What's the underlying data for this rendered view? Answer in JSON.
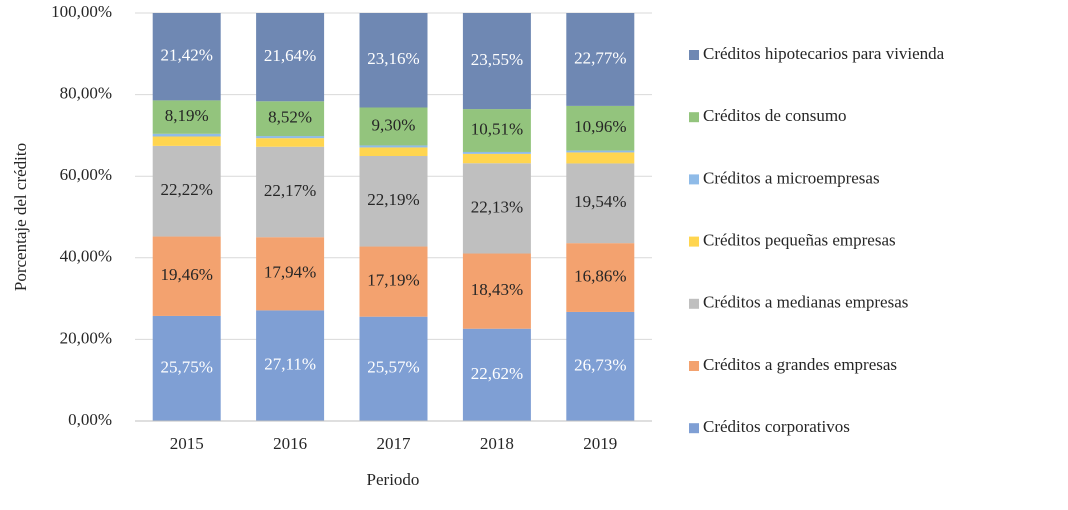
{
  "chart_data": {
    "type": "stacked-bar",
    "x_label": "Periodo",
    "y_label": "Porcentaje del crédito",
    "categories": [
      "2015",
      "2016",
      "2017",
      "2018",
      "2019"
    ],
    "ylim": [
      0,
      100
    ],
    "yticks": [
      {
        "value": 0,
        "label": "0,00%"
      },
      {
        "value": 20,
        "label": "20,00%"
      },
      {
        "value": 40,
        "label": "40,00%"
      },
      {
        "value": 60,
        "label": "60,00%"
      },
      {
        "value": 80,
        "label": "80,00%"
      },
      {
        "value": 100,
        "label": "100,00%"
      }
    ],
    "grid": true,
    "legend": "right",
    "series": [
      {
        "name": "Créditos corporativos",
        "color": "#7f9fd4",
        "label_color": "#ffffff",
        "values": [
          25.75,
          27.11,
          25.57,
          22.62,
          26.73
        ],
        "value_labels": [
          "25,75%",
          "27,11%",
          "25,57%",
          "22,62%",
          "26,73%"
        ]
      },
      {
        "name": "Créditos a grandes empresas",
        "color": "#f3a26f",
        "label_color": "#262626",
        "values": [
          19.46,
          17.94,
          17.19,
          18.43,
          16.86
        ],
        "value_labels": [
          "19,46%",
          "17,94%",
          "17,19%",
          "18,43%",
          "16,86%"
        ]
      },
      {
        "name": "Créditos a medianas empresas",
        "color": "#bfbfbf",
        "label_color": "#262626",
        "values": [
          22.22,
          22.17,
          22.19,
          22.13,
          19.54
        ],
        "value_labels": [
          "22,22%",
          "22,17%",
          "22,19%",
          "22,13%",
          "19,54%"
        ]
      },
      {
        "name": "Créditos pequeñas empresas",
        "color": "#ffd54f",
        "values": [
          2.3,
          2.1,
          2.1,
          2.3,
          2.7
        ]
      },
      {
        "name": "Créditos a microempresas",
        "color": "#8fbbe8",
        "values": [
          0.66,
          0.52,
          0.49,
          0.46,
          0.44
        ]
      },
      {
        "name": "Créditos de consumo",
        "color": "#93c47d",
        "label_color": "#262626",
        "values": [
          8.19,
          8.52,
          9.3,
          10.51,
          10.96
        ],
        "value_labels": [
          "8,19%",
          "8,52%",
          "9,30%",
          "10,51%",
          "10,96%"
        ]
      },
      {
        "name": "Créditos hipotecarios para vivienda",
        "color": "#6f88b3",
        "label_color": "#ffffff",
        "values": [
          21.42,
          21.64,
          23.16,
          23.55,
          22.77
        ],
        "value_labels": [
          "21,42%",
          "21,64%",
          "23,16%",
          "23,55%",
          "22,77%"
        ]
      }
    ]
  }
}
